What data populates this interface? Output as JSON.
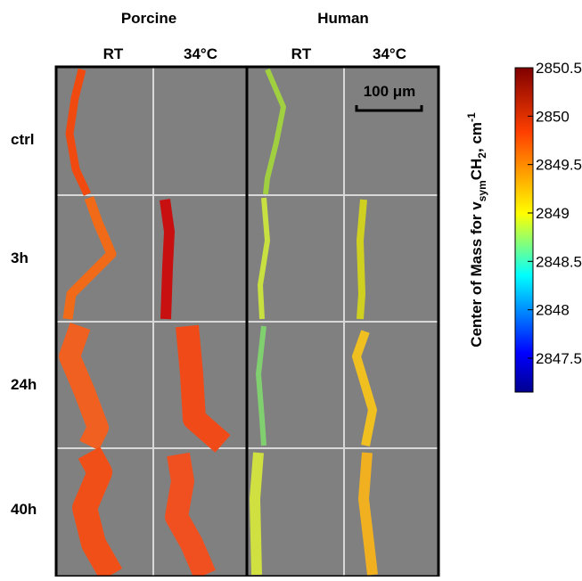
{
  "groups": [
    {
      "label": "Porcine"
    },
    {
      "label": "Human"
    }
  ],
  "columns": [
    "RT",
    "34°C",
    "RT",
    "34°C"
  ],
  "rows": [
    "ctrl",
    "3h",
    "24h",
    "40h"
  ],
  "scale_bar": "100 μm",
  "colorbar": {
    "label": {
      "prefix": "Center of Mass for v",
      "sub1": "sym",
      "mid": "CH",
      "sub2": "2",
      "suffix": ", cm",
      "sup": "-1"
    },
    "lim": [
      2847.15,
      2850.5
    ],
    "ticks": [
      2847.5,
      2848,
      2848.5,
      2849,
      2849.5,
      2850,
      2850.5
    ]
  }
}
